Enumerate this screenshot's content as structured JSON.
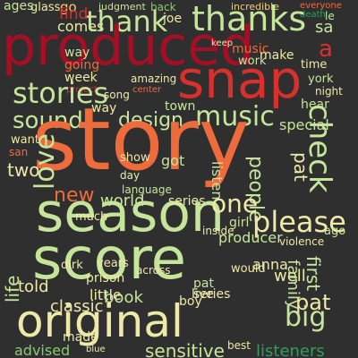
{
  "cloud": {
    "background": "#2f2f2f",
    "words": [
      "produced",
      "story",
      "season",
      "score",
      "original",
      "snap",
      "stories",
      "thanks",
      "thank",
      "one",
      "please",
      "big",
      "music",
      "check",
      "sound",
      "design",
      "new",
      "love",
      "two",
      "life",
      "listen",
      "world",
      "people",
      "sensitive",
      "classic",
      "producer",
      "listeners",
      "advised",
      "book",
      "family",
      "made",
      "years",
      "young",
      "told",
      "prison",
      "special",
      "help",
      "language",
      "got",
      "day",
      "show",
      "mark",
      "series",
      "kim",
      "would",
      "pat",
      "boy",
      "little",
      "time",
      "live",
      "well",
      "anna",
      "york",
      "hear",
      "night",
      "week",
      "way",
      "work",
      "music"
    ]
  }
}
